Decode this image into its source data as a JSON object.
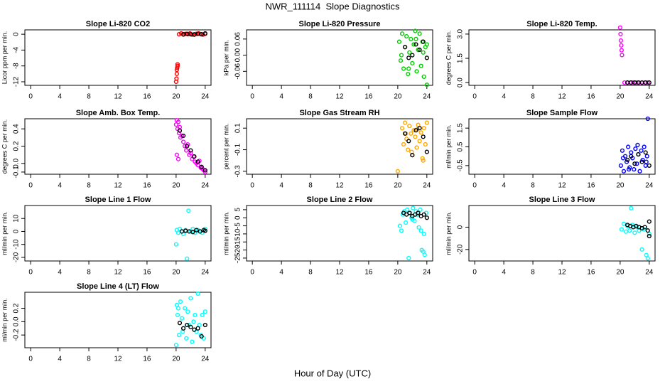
{
  "title": "NWR_111114  Slope Diagnostics",
  "xlabel": "Hour of Day (UTC)",
  "chart_data": [
    {
      "type": "scatter",
      "title": "Slope Li-820 CO2",
      "ylabel": "Licor ppm per min.",
      "xlim": [
        -0.8,
        24.8
      ],
      "xticks": [
        0,
        4,
        8,
        12,
        16,
        20,
        24
      ],
      "ylim": [
        -12.9,
        1.1
      ],
      "yticks": [
        0,
        -4,
        -8,
        -12
      ],
      "series": [
        {
          "color": "#ff0000",
          "x": [
            20.0,
            20.05,
            20.1,
            20.1,
            20.15,
            20.2,
            20.2,
            20.4,
            20.7,
            21,
            21.3,
            21.6,
            21.9,
            22.2,
            22.5,
            22.8,
            23.1,
            23.4,
            23.7,
            24
          ],
          "values": [
            -12,
            -11.2,
            -10,
            -9,
            -8.5,
            -8,
            -7.6,
            0,
            0.2,
            -0.1,
            0.1,
            0,
            0.2,
            -0.1,
            0,
            0.1,
            0.2,
            0,
            -0.1,
            0.1
          ]
        },
        {
          "color": "#000000",
          "x": [
            21,
            21.5,
            22,
            22.5,
            23,
            23.5,
            24
          ],
          "values": [
            0,
            0.1,
            0,
            -0.1,
            0.1,
            0,
            0.2
          ]
        }
      ]
    },
    {
      "type": "scatter",
      "title": "Slope Li-820 Pressure",
      "ylabel": "kPa per min.",
      "xlim": [
        -0.8,
        24.8
      ],
      "xticks": [
        0,
        4,
        8,
        12,
        16,
        20,
        24
      ],
      "ylim": [
        -0.112,
        0.094
      ],
      "yticks": [
        0.06,
        {
          "value": 0,
          "label": "0.00"
        },
        -0.06
      ],
      "series": [
        {
          "color": "#00cc00",
          "x": [
            20.2,
            20.4,
            20.6,
            20.8,
            21,
            21.2,
            21.4,
            21.6,
            21.8,
            22,
            22.2,
            22.4,
            22.6,
            22.8,
            23,
            23.2,
            23.4,
            23.6,
            23.8,
            24,
            20.5,
            21.5,
            22.5,
            23.5,
            24
          ],
          "values": [
            0.05,
            -0.02,
            0.08,
            -0.05,
            0.03,
            0.07,
            -0.07,
            0.01,
            0.06,
            -0.03,
            0.04,
            0.09,
            -0.06,
            0.02,
            0.08,
            -0.04,
            0.05,
            -0.08,
            0.03,
            -0.11,
            0.0,
            -0.05,
            0.06,
            0.01,
            0.04
          ]
        },
        {
          "color": "#000000",
          "x": [
            21,
            21.5,
            22,
            22.5,
            23,
            23.5,
            24
          ],
          "values": [
            0.03,
            -0.01,
            0.0,
            0.04,
            0.02,
            0.05,
            -0.01
          ]
        }
      ]
    },
    {
      "type": "scatter",
      "title": "Slope Li-820 Temp.",
      "ylabel": "degrees C per min.",
      "xlim": [
        -0.8,
        24.8
      ],
      "xticks": [
        0,
        4,
        8,
        12,
        16,
        20,
        24
      ],
      "ylim": [
        -0.17,
        3.26
      ],
      "yticks": [
        {
          "value": 0,
          "label": "0.0"
        },
        1.5,
        {
          "value": 3,
          "label": "3.0"
        }
      ],
      "series": [
        {
          "color": "#ff00ff",
          "x": [
            20.0,
            20.05,
            20.1,
            20.15,
            20.2,
            20.25,
            20.6,
            21,
            21.4,
            21.8,
            22.2,
            22.6,
            23,
            23.4,
            23.8
          ],
          "values": [
            3.4,
            3.0,
            2.6,
            2.3,
            2.0,
            1.7,
            0,
            0,
            0,
            0,
            0,
            0,
            0,
            0,
            0
          ]
        },
        {
          "color": "#000000",
          "x": [
            21,
            21.5,
            22,
            22.5,
            23,
            23.5,
            24
          ],
          "values": [
            0,
            0,
            0,
            0,
            0,
            0,
            0
          ]
        }
      ]
    },
    {
      "type": "scatter",
      "title": "Slope Amb. Box Temp.",
      "ylabel": "degrees C per min.",
      "xlim": [
        -0.8,
        24.8
      ],
      "xticks": [
        0,
        4,
        8,
        12,
        16,
        20,
        24
      ],
      "ylim": [
        -0.125,
        0.517
      ],
      "yticks": [
        -0.1,
        {
          "value": 0,
          "label": "0.0"
        },
        0.2,
        0.4
      ],
      "series": [
        {
          "color": "#ff00ff",
          "x": [
            20,
            20.1,
            20.2,
            20.3,
            20.4,
            20.5,
            20.6,
            20.8,
            21,
            21.2,
            21.4,
            21.6,
            21.8,
            22,
            22.2,
            22.4,
            22.6,
            22.8,
            23,
            23.2,
            23.4,
            23.6,
            23.8,
            24,
            20.1,
            20.3
          ],
          "values": [
            0.45,
            0.5,
            0.4,
            0.48,
            0.35,
            0.42,
            0.3,
            0.32,
            0.25,
            0.2,
            0.15,
            0.22,
            0.1,
            0.12,
            0.05,
            0.08,
            0.02,
            0.0,
            -0.02,
            0.03,
            -0.05,
            -0.06,
            -0.08,
            -0.1,
            0.1,
            0.05
          ]
        },
        {
          "color": "#000000",
          "x": [
            20.5,
            21,
            21.5,
            22,
            22.5,
            23,
            23.5,
            24
          ],
          "values": [
            0.38,
            0.32,
            0.2,
            0.15,
            0.08,
            0.02,
            -0.04,
            -0.08
          ]
        }
      ]
    },
    {
      "type": "scatter",
      "title": "Slope Gas Stream RH",
      "ylabel": "percent per min.",
      "xlim": [
        -0.8,
        24.8
      ],
      "xticks": [
        0,
        4,
        8,
        12,
        16,
        20,
        24
      ],
      "ylim": [
        -0.327,
        0.187
      ],
      "yticks": [
        0.1,
        -0.1,
        -0.3
      ],
      "series": [
        {
          "color": "#ffa500",
          "x": [
            20.0,
            20.6,
            20.8,
            21,
            21.2,
            21.4,
            21.6,
            21.8,
            22,
            22.2,
            22.4,
            22.6,
            22.8,
            23,
            23.2,
            23.4,
            23.6,
            23.8,
            24,
            21.1,
            21.9,
            22.7,
            23.5
          ],
          "values": [
            -0.3,
            0.1,
            -0.05,
            0.15,
            0.0,
            -0.1,
            0.12,
            0.05,
            -0.15,
            0.08,
            0.02,
            -0.08,
            0.13,
            -0.02,
            0.06,
            -0.18,
            0.1,
            -0.05,
            0.15,
            0.05,
            -0.12,
            0.09,
            -0.2
          ]
        },
        {
          "color": "#000000",
          "x": [
            21,
            21.5,
            22,
            22.5,
            23,
            23.5,
            24
          ],
          "values": [
            0.05,
            -0.02,
            -0.15,
            0.08,
            0.1,
            0.02,
            -0.12
          ]
        }
      ]
    },
    {
      "type": "scatter",
      "title": "Slope Sample Flow",
      "ylabel": "ml/min per min.",
      "xlim": [
        -0.8,
        24.8
      ],
      "xticks": [
        0,
        4,
        8,
        12,
        16,
        20,
        24
      ],
      "ylim": [
        -0.96,
        2.0
      ],
      "yticks": [
        -0.5,
        0.5,
        1.5
      ],
      "series": [
        {
          "color": "#0000ff",
          "x": [
            20.1,
            20.3,
            20.5,
            20.7,
            20.9,
            21.1,
            21.3,
            21.5,
            21.7,
            21.9,
            22.1,
            22.3,
            22.5,
            22.7,
            22.9,
            23.1,
            23.3,
            23.5,
            23.7,
            23.8,
            20.4,
            21.2,
            22.4,
            23.6
          ],
          "values": [
            -0.5,
            0.3,
            -0.8,
            0.0,
            -0.3,
            0.5,
            -0.6,
            0.2,
            -0.1,
            -0.7,
            0.4,
            -0.4,
            0.1,
            -0.8,
            0.3,
            -0.2,
            0.5,
            -0.5,
            0.0,
            2.0,
            -0.1,
            -0.7,
            0.6,
            -0.3
          ]
        },
        {
          "color": "#000000",
          "x": [
            21,
            21.5,
            22,
            22.5,
            23,
            23.5,
            24
          ],
          "values": [
            -0.2,
            0.0,
            -0.4,
            0.1,
            -0.3,
            0.2,
            -0.5
          ]
        }
      ]
    },
    {
      "type": "scatter",
      "title": "Slope Line 1 Flow",
      "ylabel": "ml/min per min.",
      "xlim": [
        -0.8,
        24.8
      ],
      "xticks": [
        0,
        4,
        8,
        12,
        16,
        20,
        24
      ],
      "ylim": [
        -22.8,
        20
      ],
      "yticks": [
        -20,
        -10,
        0,
        10
      ],
      "series": [
        {
          "color": "#00ffff",
          "x": [
            20,
            20.1,
            20.3,
            20.5,
            20.8,
            21,
            21.3,
            21.5,
            21.7,
            22,
            22.3,
            22.6,
            23,
            23.3,
            23.6,
            24
          ],
          "values": [
            -10,
            1,
            -1,
            2,
            0,
            -2,
            1,
            -21,
            16,
            0,
            2,
            -1,
            1,
            0,
            -1,
            2
          ]
        },
        {
          "color": "#000000",
          "x": [
            20.8,
            21.3,
            21.8,
            22.3,
            22.8,
            23.3,
            23.8,
            24
          ],
          "values": [
            0,
            0.5,
            0,
            -0.5,
            1,
            0,
            1,
            0.5
          ]
        }
      ]
    },
    {
      "type": "scatter",
      "title": "Slope Line 2 Flow",
      "ylabel": "ml/min per min.",
      "xlim": [
        -0.8,
        24.8
      ],
      "xticks": [
        0,
        4,
        8,
        12,
        16,
        20,
        24
      ],
      "ylim": [
        -26.8,
        7.6
      ],
      "yticks": [
        5,
        0,
        -5,
        -10,
        -15,
        -20,
        -25
      ],
      "series": [
        {
          "color": "#00ffff",
          "x": [
            20.3,
            20.5,
            20.7,
            20.9,
            21.1,
            21.3,
            21.5,
            21.7,
            21.9,
            22.1,
            22.3,
            22.5,
            22.7,
            22.9,
            23.1,
            23.3,
            23.5,
            23.7,
            23.9,
            22,
            23.2,
            23.6
          ],
          "values": [
            -5,
            -8,
            2,
            4,
            -3,
            5,
            -25,
            3,
            0,
            6,
            -2,
            4,
            2,
            -6,
            5,
            -20,
            -21,
            -23,
            3,
            -1,
            -8,
            -10
          ]
        },
        {
          "color": "#000000",
          "x": [
            20.8,
            21.2,
            21.6,
            22,
            22.4,
            22.8,
            23.2,
            23.6,
            24
          ],
          "values": [
            3,
            2,
            3,
            1,
            2,
            3,
            1,
            2,
            0
          ]
        }
      ]
    },
    {
      "type": "scatter",
      "title": "Slope Line 3 Flow",
      "ylabel": "ml/min per min.",
      "xlim": [
        -0.8,
        24.8
      ],
      "xticks": [
        0,
        4,
        8,
        12,
        16,
        20,
        24
      ],
      "ylim": [
        -30.3,
        19.4
      ],
      "yticks": [
        -20,
        0
      ],
      "series": [
        {
          "color": "#00ffff",
          "x": [
            20.2,
            20.5,
            20.8,
            21,
            21.3,
            21.5,
            21.7,
            22,
            22.3,
            22.6,
            23,
            23.3,
            23.6,
            23.8,
            24
          ],
          "values": [
            -2,
            3,
            -4,
            1,
            -3,
            17,
            2,
            -5,
            0,
            -3,
            -20,
            -2,
            -25,
            -28,
            -6
          ]
        },
        {
          "color": "#000000",
          "x": [
            21,
            21.4,
            21.8,
            22.2,
            22.6,
            23,
            23.4,
            23.8,
            24,
            24
          ],
          "values": [
            2,
            1,
            0,
            1,
            0,
            -1,
            0,
            -3,
            -8,
            5
          ]
        }
      ]
    },
    {
      "type": "scatter",
      "title": "Slope Line 4 (LT) Flow",
      "ylabel": "ml/min per min.",
      "xlim": [
        -0.8,
        24.8
      ],
      "xticks": [
        0,
        4,
        8,
        12,
        16,
        20,
        24
      ],
      "ylim": [
        -0.39,
        0.44
      ],
      "yticks": [
        -0.2,
        {
          "value": 0,
          "label": "0.0"
        },
        0.2
      ],
      "series": [
        {
          "color": "#00ffff",
          "x": [
            20,
            20.1,
            20.2,
            20.4,
            20.6,
            20.8,
            21,
            21.2,
            21.4,
            21.6,
            21.8,
            22,
            22.2,
            22.4,
            22.6,
            22.8,
            23,
            23.2,
            23.4,
            23.6,
            23.8,
            24,
            20.3,
            20.9,
            21.5
          ],
          "values": [
            -0.35,
            0.25,
            0.1,
            -0.2,
            0.3,
            0.05,
            -0.1,
            0.2,
            -0.25,
            0.15,
            -0.05,
            0.35,
            -0.3,
            0.0,
            0.1,
            -0.15,
            0.42,
            -0.05,
            -0.2,
            0.1,
            -0.25,
            0.15,
            0.2,
            -0.15,
            -0.05
          ]
        },
        {
          "color": "#000000",
          "x": [
            20.5,
            21,
            21.5,
            22,
            22.5,
            23,
            23.5,
            24
          ],
          "values": [
            -0.02,
            -0.1,
            -0.05,
            -0.08,
            -0.12,
            -0.1,
            -0.22,
            -0.05
          ]
        }
      ]
    }
  ]
}
